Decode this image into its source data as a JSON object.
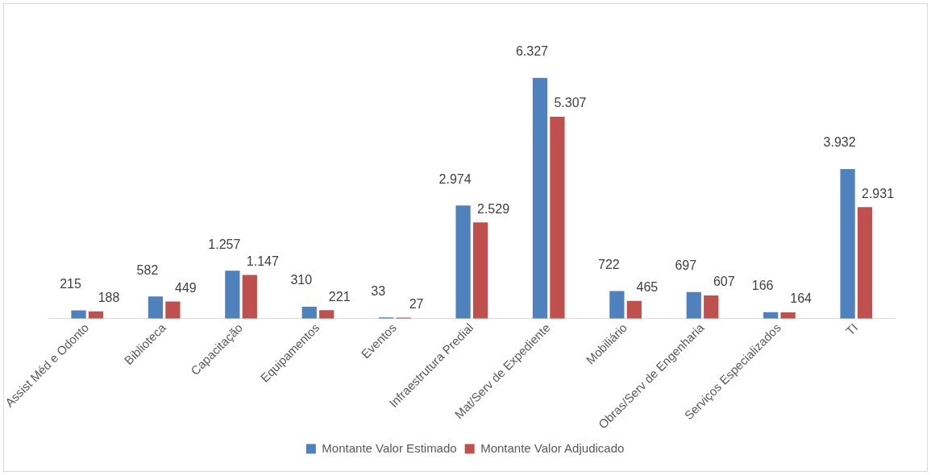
{
  "chart_data": {
    "type": "bar",
    "categories": [
      "Assist Méd e Odonto",
      "Biblioteca",
      "Capacitação",
      "Equipamentos",
      "Eventos",
      "Infraestrutura Predial",
      "Mat/Serv de Expediente",
      "Mobiliário",
      "Obras/Serv de Engenharia",
      "Serviços Especializados",
      "TI"
    ],
    "series": [
      {
        "name": "Montante Valor Estimado",
        "color": "#4f81bd",
        "values": [
          215,
          582,
          1257,
          310,
          33,
          2974,
          6327,
          722,
          697,
          166,
          3932
        ],
        "value_labels": [
          "215",
          "582",
          "1.257",
          "310",
          "33",
          "2.974",
          "6.327",
          "722",
          "697",
          "166",
          "3.932"
        ]
      },
      {
        "name": "Montante Valor Adjudicado",
        "color": "#c0504d",
        "values": [
          188,
          449,
          1147,
          221,
          27,
          2529,
          5307,
          465,
          607,
          164,
          2931
        ],
        "value_labels": [
          "188",
          "449",
          "1.147",
          "221",
          "27",
          "2.529",
          "5.307",
          "465",
          "607",
          "164",
          "2.931"
        ]
      }
    ],
    "legend": "bottom",
    "grid": false
  }
}
